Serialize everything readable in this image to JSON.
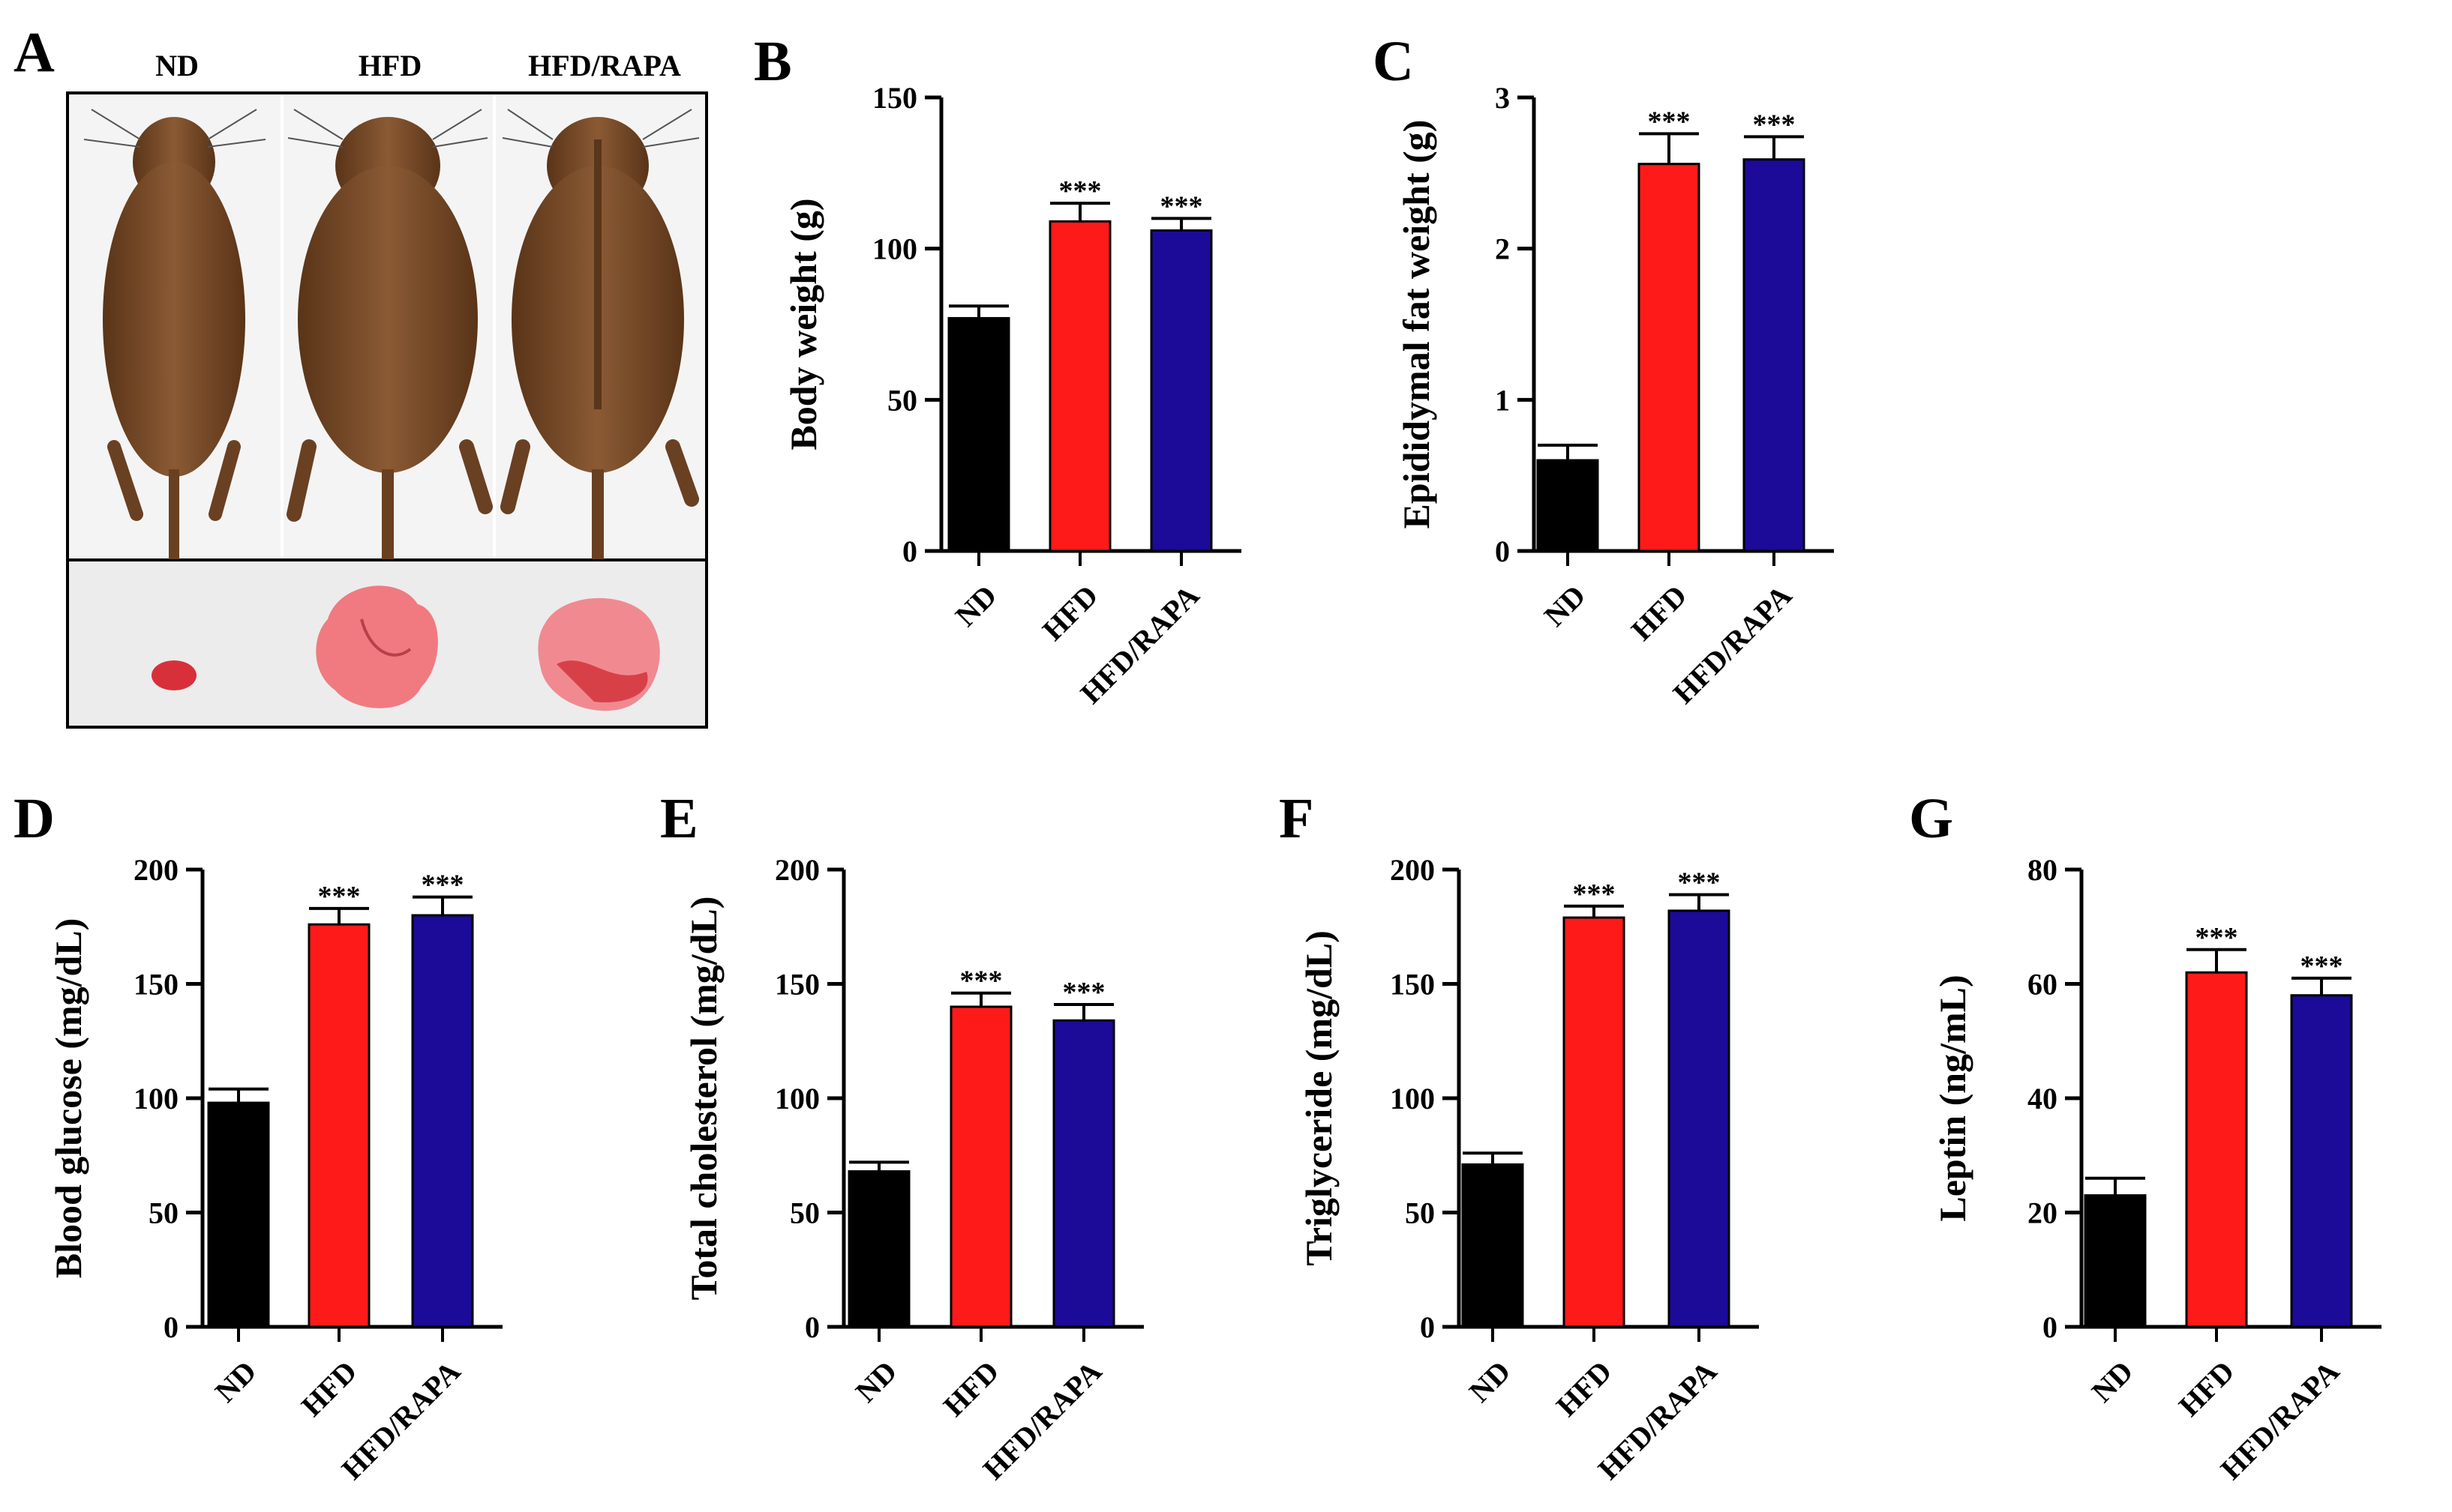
{
  "figure": {
    "panel_a": {
      "letter": "A",
      "column_labels": [
        "ND",
        "HFD",
        "HFD/RAPA"
      ],
      "colors": {
        "fur": "#7a4a2a",
        "fur_dark": "#4a2a16",
        "tissue": "#e8747a",
        "tissue_dark": "#c8303a",
        "background": "#f3f3f3"
      },
      "icons": [
        "mouse-photo-nd",
        "mouse-photo-hfd",
        "mouse-photo-hfd-rapa",
        "fat-tissue-photo"
      ]
    },
    "bar_colors": {
      "ND": "#000000",
      "HFD": "#ff1a1a",
      "HFD/RAPA": "#1c0a99"
    }
  },
  "chart_data": [
    {
      "id": "B",
      "letter": "B",
      "type": "bar",
      "ylabel": "Body weight (g)",
      "categories": [
        "ND",
        "HFD",
        "HFD/RAPA"
      ],
      "values": [
        77,
        109,
        106
      ],
      "errors": [
        4,
        6,
        4
      ],
      "significance": [
        "",
        "***",
        "***"
      ],
      "ylim": [
        0,
        150
      ],
      "yticks": [
        "0",
        "50",
        "100",
        "150"
      ]
    },
    {
      "id": "C",
      "letter": "C",
      "type": "bar",
      "ylabel": "Epididymal fat weight (g)",
      "categories": [
        "ND",
        "HFD",
        "HFD/RAPA"
      ],
      "values": [
        0.6,
        2.56,
        2.59
      ],
      "errors": [
        0.1,
        0.2,
        0.15
      ],
      "significance": [
        "",
        "***",
        "***"
      ],
      "ylim": [
        0,
        3
      ],
      "yticks": [
        "0",
        "1",
        "2",
        "3"
      ]
    },
    {
      "id": "D",
      "letter": "D",
      "type": "bar",
      "ylabel": "Blood glucose (mg/dL)",
      "categories": [
        "ND",
        "HFD",
        "HFD/RAPA"
      ],
      "values": [
        98,
        176,
        180
      ],
      "errors": [
        6,
        7,
        8
      ],
      "significance": [
        "",
        "***",
        "***"
      ],
      "ylim": [
        0,
        200
      ],
      "yticks": [
        "0",
        "50",
        "100",
        "150",
        "200"
      ]
    },
    {
      "id": "E",
      "letter": "E",
      "type": "bar",
      "ylabel": "Total cholesterol (mg/dL)",
      "categories": [
        "ND",
        "HFD",
        "HFD/RAPA"
      ],
      "values": [
        68,
        140,
        134
      ],
      "errors": [
        4,
        6,
        7
      ],
      "significance": [
        "",
        "***",
        "***"
      ],
      "ylim": [
        0,
        200
      ],
      "yticks": [
        "0",
        "50",
        "100",
        "150",
        "200"
      ]
    },
    {
      "id": "F",
      "letter": "F",
      "type": "bar",
      "ylabel": "Triglyceride (mg/dL)",
      "categories": [
        "ND",
        "HFD",
        "HFD/RAPA"
      ],
      "values": [
        71,
        179,
        182
      ],
      "errors": [
        5,
        5,
        7
      ],
      "significance": [
        "",
        "***",
        "***"
      ],
      "ylim": [
        0,
        200
      ],
      "yticks": [
        "0",
        "50",
        "100",
        "150",
        "200"
      ]
    },
    {
      "id": "G",
      "letter": "G",
      "type": "bar",
      "ylabel": "Leptin (ng/mL)",
      "categories": [
        "ND",
        "HFD",
        "HFD/RAPA"
      ],
      "values": [
        23,
        62,
        58
      ],
      "errors": [
        3,
        4,
        3
      ],
      "significance": [
        "",
        "***",
        "***"
      ],
      "ylim": [
        0,
        80
      ],
      "yticks": [
        "0",
        "20",
        "40",
        "60",
        "80"
      ]
    }
  ]
}
